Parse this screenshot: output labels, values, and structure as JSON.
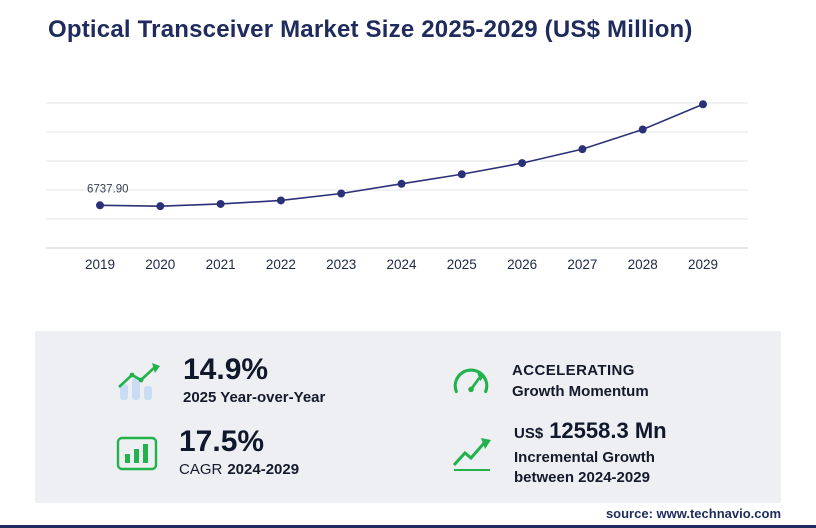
{
  "title": "Optical Transceiver Market Size 2025-2029 (US$ Million)",
  "source": "source: www.technavio.com",
  "chart_data": {
    "type": "line",
    "title": "Optical Transceiver Market Size 2025-2029 (US$ Million)",
    "x": [
      2019,
      2020,
      2021,
      2022,
      2023,
      2024,
      2025,
      2026,
      2027,
      2028,
      2029
    ],
    "values": [
      6737.9,
      6600,
      6950,
      7500,
      8600,
      10130.3,
      11639.7,
      13400,
      15600,
      18700,
      22688.6
    ],
    "first_point_label": "6737.90",
    "xlabel": "",
    "ylabel": "",
    "ylim": [
      0,
      23200
    ],
    "grid": true,
    "gridline_count": 6,
    "legend": "none",
    "marker": "circle"
  },
  "stats": {
    "yoy": {
      "icon": "bar-chart-up-icon",
      "value": "14.9%",
      "label": "2025 Year-over-Year"
    },
    "momentum": {
      "icon": "speedometer-icon",
      "line1": "ACCELERATING",
      "line2": "Growth Momentum"
    },
    "cagr": {
      "icon": "bar-chart-box-icon",
      "value": "17.5%",
      "label_prefix": "CAGR",
      "label_period": "2024-2029"
    },
    "incremental": {
      "icon": "growth-arrow-icon",
      "currency": "US$",
      "value": "12558.3 Mn",
      "label_line1": "Incremental Growth",
      "label_line2": "between 2024-2029"
    }
  },
  "colors": {
    "navy": "#1e2b5c",
    "line_navy": "#2b3178",
    "accent_green": "#21b24b",
    "bar_blue": "#c9dcf4",
    "panel_gray": "#edeff2"
  }
}
